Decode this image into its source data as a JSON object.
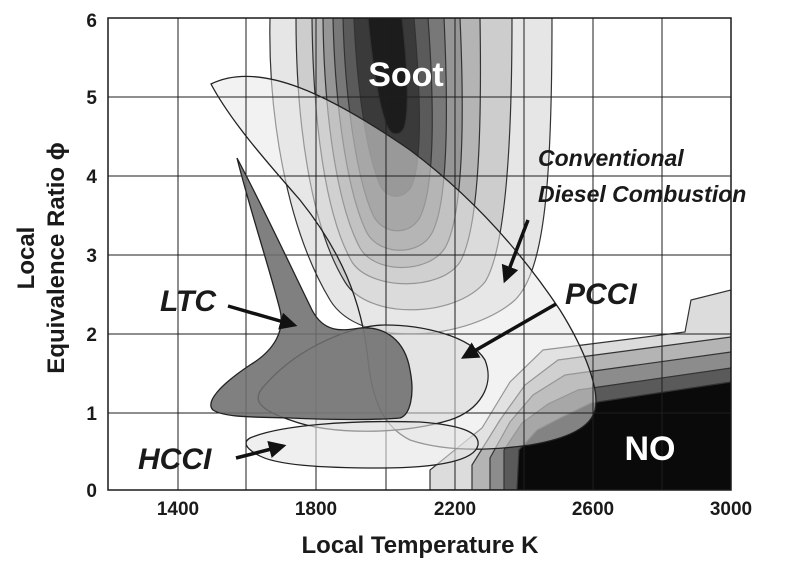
{
  "chart_data": {
    "type": "contour",
    "xlabel": "Local Temperature K",
    "ylabel_line1": "Local",
    "ylabel_line2": "Equivalence Ratio ϕ",
    "xlim": [
      1200,
      3000
    ],
    "ylim": [
      0,
      6
    ],
    "x_ticks": [
      1400,
      1800,
      2200,
      2600,
      3000
    ],
    "y_ticks": [
      0,
      1,
      2,
      3,
      4,
      5,
      6
    ],
    "grid": true,
    "regions": [
      {
        "name": "Soot",
        "label": "Soot"
      },
      {
        "name": "NO",
        "label": "NO"
      },
      {
        "name": "Conventional Diesel Combustion",
        "label_line1": "Conventional",
        "label_line2": "Diesel Combustion"
      },
      {
        "name": "LTC",
        "label": "LTC"
      },
      {
        "name": "PCCI",
        "label": "PCCI"
      },
      {
        "name": "HCCI",
        "label": "HCCI"
      }
    ],
    "colors": {
      "background": "#ffffff",
      "soot_levels": [
        "#e6e6e6",
        "#cdcdcd",
        "#b4b4b4",
        "#969696",
        "#787878",
        "#5a5a5a",
        "#3a3a3a",
        "#1c1c1c"
      ],
      "no_levels": [
        "#dcdcdc",
        "#b4b4b4",
        "#8c8c8c",
        "#5a5a5a",
        "#0a0a0a"
      ],
      "ltc_fill": "#6e6e6e",
      "outline": "#222222"
    }
  }
}
